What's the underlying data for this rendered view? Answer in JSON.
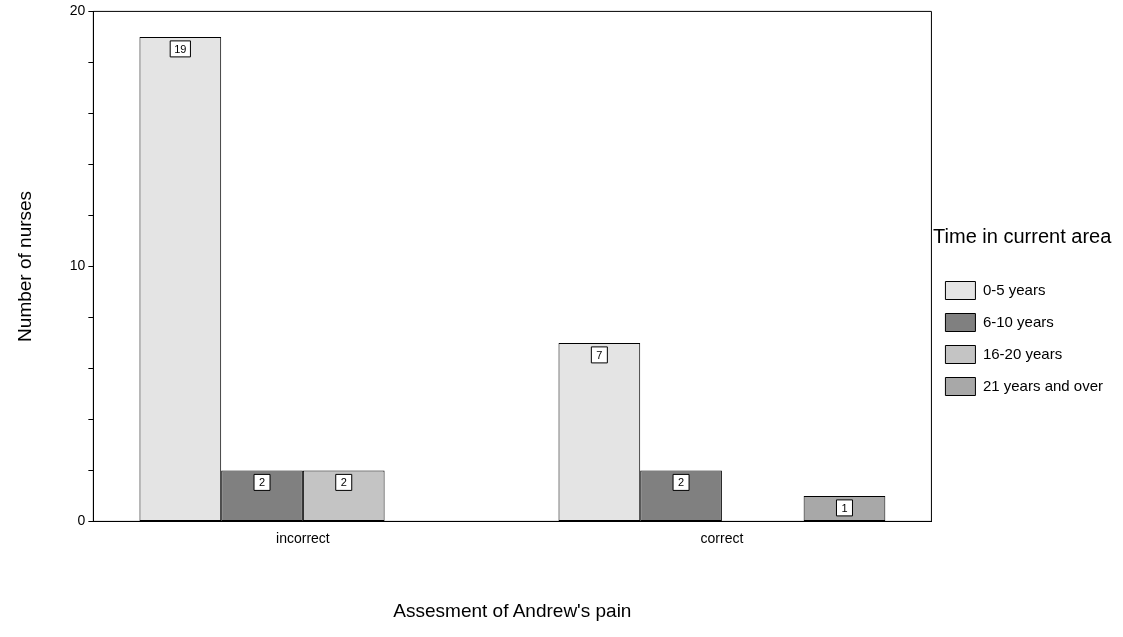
{
  "chart_data": {
    "type": "bar",
    "xlabel": "Assesment of Andrew's pain",
    "ylabel": "Number of nurses",
    "legend_title": "Time in current area",
    "categories": [
      "incorrect",
      "correct"
    ],
    "series": [
      {
        "name": "0-5 years",
        "color": "#e4e4e4",
        "values": [
          19,
          7
        ]
      },
      {
        "name": "6-10 years",
        "color": "#808080",
        "values": [
          2,
          2
        ]
      },
      {
        "name": "16-20 years",
        "color": "#c4c4c4",
        "values": [
          2,
          null
        ]
      },
      {
        "name": "21 years and over",
        "color": "#a8a8a8",
        "values": [
          null,
          1
        ]
      }
    ],
    "ylim": [
      0,
      20
    ],
    "yticks": [
      0,
      {
        "value": 2,
        "label": null
      },
      {
        "value": 4,
        "label": null
      },
      {
        "value": 6,
        "label": null
      },
      {
        "value": 8,
        "label": null
      },
      10,
      {
        "value": 12,
        "label": null
      },
      {
        "value": 14,
        "label": null
      },
      {
        "value": 16,
        "label": null
      },
      {
        "value": 18,
        "label": null
      },
      20
    ],
    "grid": false,
    "legend": "right",
    "data_labels": true
  }
}
